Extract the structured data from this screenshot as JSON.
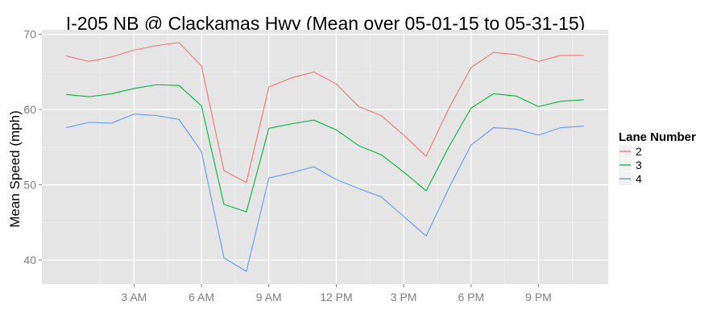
{
  "chart_data": {
    "type": "line",
    "title": "I-205 NB @ Clackamas Hwy (Mean over 05-01-15 to 05-31-15)",
    "xlabel": "",
    "ylabel": "Mean Speed (mph)",
    "x": [
      0,
      1,
      2,
      3,
      4,
      5,
      6,
      7,
      8,
      9,
      10,
      11,
      12,
      13,
      14,
      15,
      16,
      17,
      18,
      19,
      20,
      21,
      22,
      23
    ],
    "xlim": [
      -1.1,
      24.1
    ],
    "x_ticks": [
      {
        "x": 3,
        "label": "3 AM"
      },
      {
        "x": 6,
        "label": "6 AM"
      },
      {
        "x": 9,
        "label": "9 AM"
      },
      {
        "x": 12,
        "label": "12 PM"
      },
      {
        "x": 15,
        "label": "3 PM"
      },
      {
        "x": 18,
        "label": "6 PM"
      },
      {
        "x": 21,
        "label": "9 PM"
      }
    ],
    "ylim": [
      36.8,
      70.6
    ],
    "y_ticks": [
      {
        "y": 40,
        "label": "40"
      },
      {
        "y": 50,
        "label": "50"
      },
      {
        "y": 60,
        "label": "60"
      },
      {
        "y": 70,
        "label": "70"
      }
    ],
    "grid": true,
    "legend": {
      "title": "Lane Number",
      "position": "right"
    },
    "series": [
      {
        "name": "2",
        "color": "#F8766D",
        "values": [
          67.1,
          66.4,
          67.0,
          67.9,
          68.5,
          68.9,
          65.8,
          51.9,
          50.3,
          63.0,
          64.2,
          65.0,
          63.4,
          60.4,
          59.2,
          56.6,
          53.8,
          60.1,
          65.6,
          67.6,
          67.3,
          66.4,
          67.2,
          67.2
        ]
      },
      {
        "name": "3",
        "color": "#00BA38",
        "values": [
          62.0,
          61.7,
          62.1,
          62.8,
          63.3,
          63.2,
          60.5,
          47.4,
          46.4,
          57.5,
          58.1,
          58.6,
          57.3,
          55.2,
          54.0,
          51.7,
          49.2,
          55.0,
          60.2,
          62.1,
          61.8,
          60.4,
          61.1,
          61.3
        ]
      },
      {
        "name": "4",
        "color": "#619CFF",
        "values": [
          57.6,
          58.3,
          58.2,
          59.4,
          59.2,
          58.7,
          54.4,
          40.3,
          38.5,
          50.9,
          51.6,
          52.4,
          50.7,
          49.5,
          48.4,
          45.8,
          43.2,
          49.5,
          55.3,
          57.6,
          57.4,
          56.6,
          57.6,
          57.8
        ]
      }
    ]
  }
}
